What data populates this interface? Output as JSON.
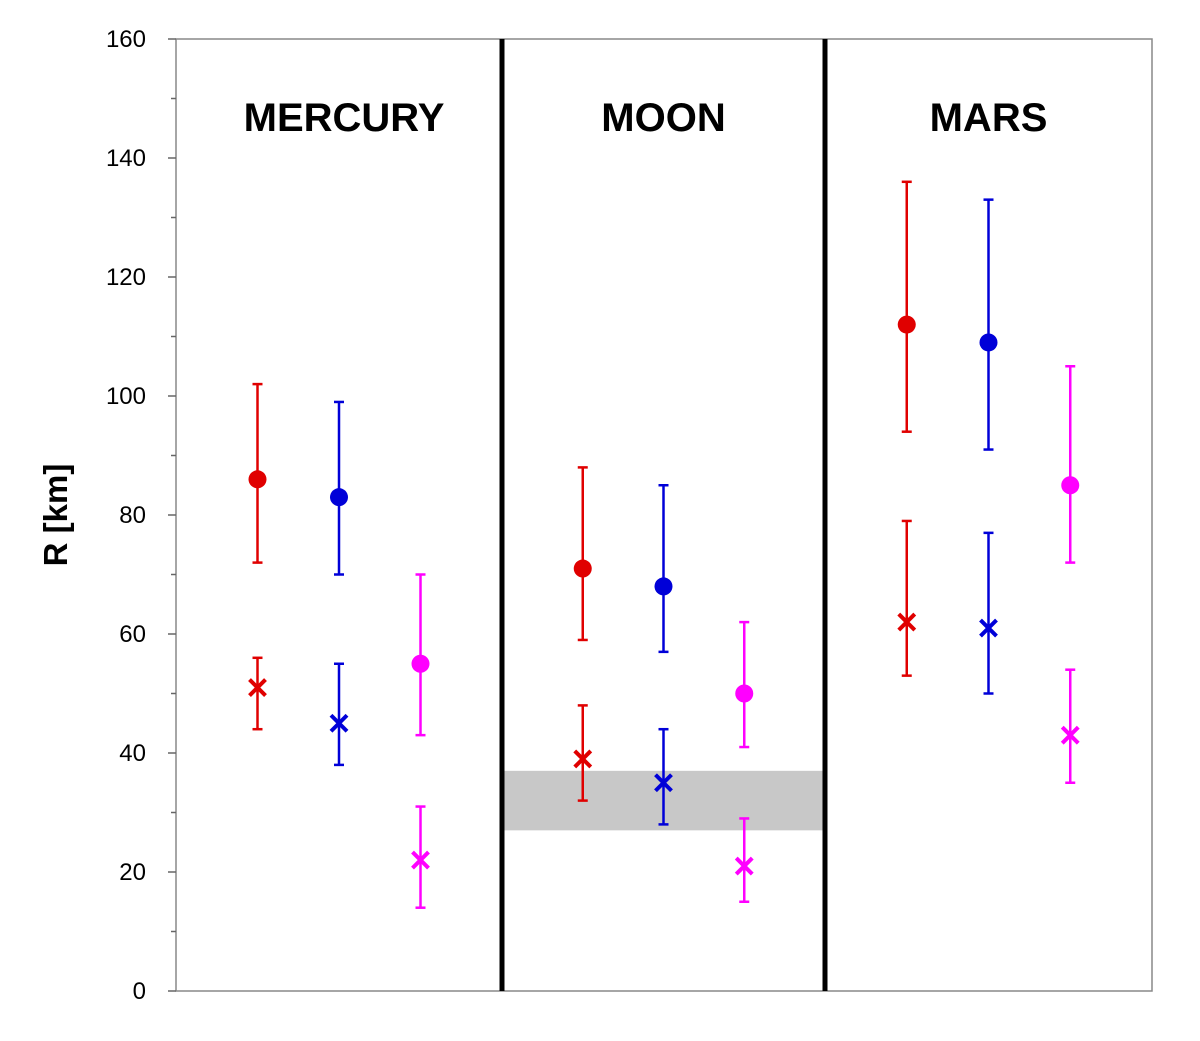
{
  "chart_data": {
    "type": "scatter",
    "title": "",
    "xlabel": "",
    "ylabel": "R  [km]",
    "ylim": [
      0,
      160
    ],
    "yticks": [
      0,
      20,
      40,
      60,
      80,
      100,
      120,
      140,
      160
    ],
    "yticks_minor_step": 10,
    "grid": false,
    "legend": "none",
    "panels": [
      {
        "name": "MERCURY"
      },
      {
        "name": "MOON"
      },
      {
        "name": "MARS"
      }
    ],
    "shaded_band": {
      "panel": 1,
      "y_range": [
        27,
        37
      ],
      "color": "#c8c8c8"
    },
    "series": [
      {
        "color": "#e00000",
        "marker": "circle",
        "slot": 0,
        "points": [
          {
            "panel": 0,
            "y": 86,
            "lo": 72,
            "hi": 102
          },
          {
            "panel": 1,
            "y": 71,
            "lo": 59,
            "hi": 88
          },
          {
            "panel": 2,
            "y": 112,
            "lo": 94,
            "hi": 136
          }
        ]
      },
      {
        "color": "#e00000",
        "marker": "x",
        "slot": 0,
        "points": [
          {
            "panel": 0,
            "y": 51,
            "lo": 44,
            "hi": 56
          },
          {
            "panel": 1,
            "y": 39,
            "lo": 32,
            "hi": 48
          },
          {
            "panel": 2,
            "y": 62,
            "lo": 53,
            "hi": 79
          }
        ]
      },
      {
        "color": "#0000d8",
        "marker": "circle",
        "slot": 1,
        "points": [
          {
            "panel": 0,
            "y": 83,
            "lo": 70,
            "hi": 99
          },
          {
            "panel": 1,
            "y": 68,
            "lo": 57,
            "hi": 85
          },
          {
            "panel": 2,
            "y": 109,
            "lo": 91,
            "hi": 133
          }
        ]
      },
      {
        "color": "#0000d8",
        "marker": "x",
        "slot": 1,
        "points": [
          {
            "panel": 0,
            "y": 45,
            "lo": 38,
            "hi": 55
          },
          {
            "panel": 1,
            "y": 35,
            "lo": 28,
            "hi": 44
          },
          {
            "panel": 2,
            "y": 61,
            "lo": 50,
            "hi": 77
          }
        ]
      },
      {
        "color": "#ff00ff",
        "marker": "circle",
        "slot": 2,
        "points": [
          {
            "panel": 0,
            "y": 55,
            "lo": 43,
            "hi": 70
          },
          {
            "panel": 1,
            "y": 50,
            "lo": 41,
            "hi": 62
          },
          {
            "panel": 2,
            "y": 85,
            "lo": 72,
            "hi": 105
          }
        ]
      },
      {
        "color": "#ff00ff",
        "marker": "x",
        "slot": 2,
        "points": [
          {
            "panel": 0,
            "y": 22,
            "lo": 14,
            "hi": 31
          },
          {
            "panel": 1,
            "y": 21,
            "lo": 15,
            "hi": 29
          },
          {
            "panel": 2,
            "y": 43,
            "lo": 35,
            "hi": 54
          }
        ]
      }
    ]
  }
}
